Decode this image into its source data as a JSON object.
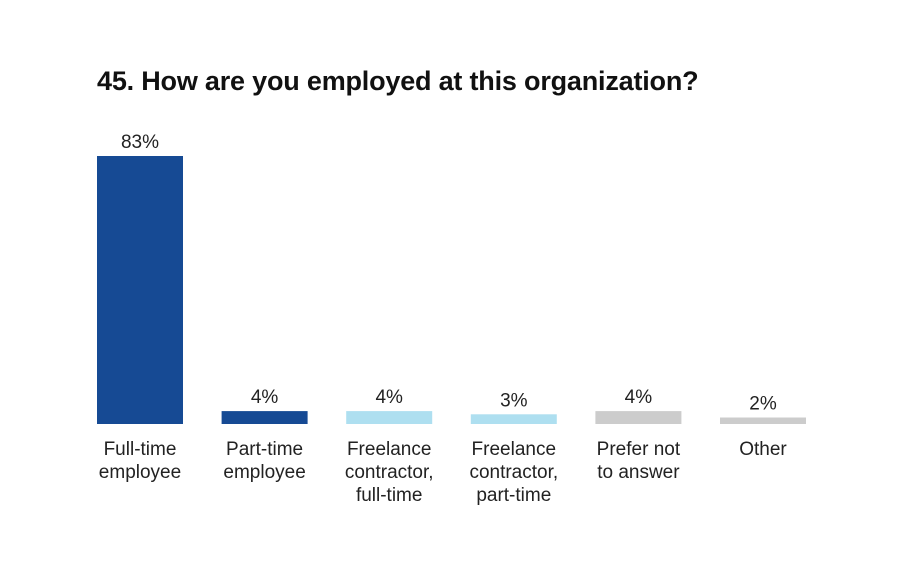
{
  "chart_data": {
    "type": "bar",
    "title": "45. How are you employed at this organization?",
    "categories": [
      [
        "Full-time",
        "employee"
      ],
      [
        "Part-time",
        "employee"
      ],
      [
        "Freelance",
        "contractor,",
        "full-time"
      ],
      [
        "Freelance",
        "contractor,",
        "part-time"
      ],
      [
        "Prefer not",
        "to answer"
      ],
      [
        "Other"
      ]
    ],
    "values": [
      83,
      4,
      4,
      3,
      4,
      2
    ],
    "value_labels": [
      "83%",
      "4%",
      "4%",
      "3%",
      "4%",
      "2%"
    ],
    "bar_colors": [
      "#164a94",
      "#164a94",
      "#aedff0",
      "#aedff0",
      "#cccccc",
      "#cccccc"
    ],
    "xlabel": "",
    "ylabel": "",
    "ylim": [
      0,
      83
    ],
    "grid": false,
    "legend": "none"
  }
}
